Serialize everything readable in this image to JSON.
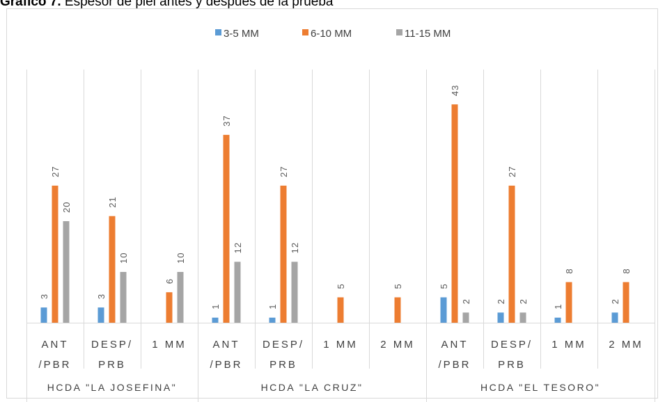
{
  "title": {
    "bold": "Gráfico 7.",
    "text": " Espesor de piel antes y después de la prueba"
  },
  "chart_data": {
    "type": "bar",
    "title": "",
    "ylim": [
      0,
      50
    ],
    "grid": false,
    "legend_position": "top",
    "series": [
      {
        "name": "3-5 MM",
        "color": "#5B9BD5",
        "values": [
          3,
          3,
          null,
          1,
          1,
          null,
          null,
          5,
          2,
          1,
          2
        ]
      },
      {
        "name": "6-10 MM",
        "color": "#ED7D31",
        "values": [
          27,
          21,
          6,
          37,
          27,
          5,
          5,
          43,
          27,
          8,
          8
        ]
      },
      {
        "name": "11-15 MM",
        "color": "#A5A5A5",
        "values": [
          20,
          10,
          10,
          12,
          12,
          null,
          null,
          2,
          2,
          null,
          null
        ]
      }
    ],
    "categories": [
      {
        "lines": [
          "ANT",
          "/PBR"
        ],
        "group": 0
      },
      {
        "lines": [
          "DESP/",
          "PRB"
        ],
        "group": 0
      },
      {
        "lines": [
          "1 MM"
        ],
        "group": 0
      },
      {
        "lines": [
          "ANT",
          "/PBR"
        ],
        "group": 1
      },
      {
        "lines": [
          "DESP/",
          "PRB"
        ],
        "group": 1
      },
      {
        "lines": [
          "1 MM"
        ],
        "group": 1
      },
      {
        "lines": [
          "2 MM"
        ],
        "group": 1
      },
      {
        "lines": [
          "ANT",
          "/PBR"
        ],
        "group": 2
      },
      {
        "lines": [
          "DESP/",
          "PRB"
        ],
        "group": 2
      },
      {
        "lines": [
          "1 MM"
        ],
        "group": 2
      },
      {
        "lines": [
          "2 MM"
        ],
        "group": 2
      }
    ],
    "groups": [
      "HCDA \"LA JOSEFINA\"",
      "HCDA \"LA CRUZ\"",
      "HCDA \"EL TESORO\""
    ]
  }
}
